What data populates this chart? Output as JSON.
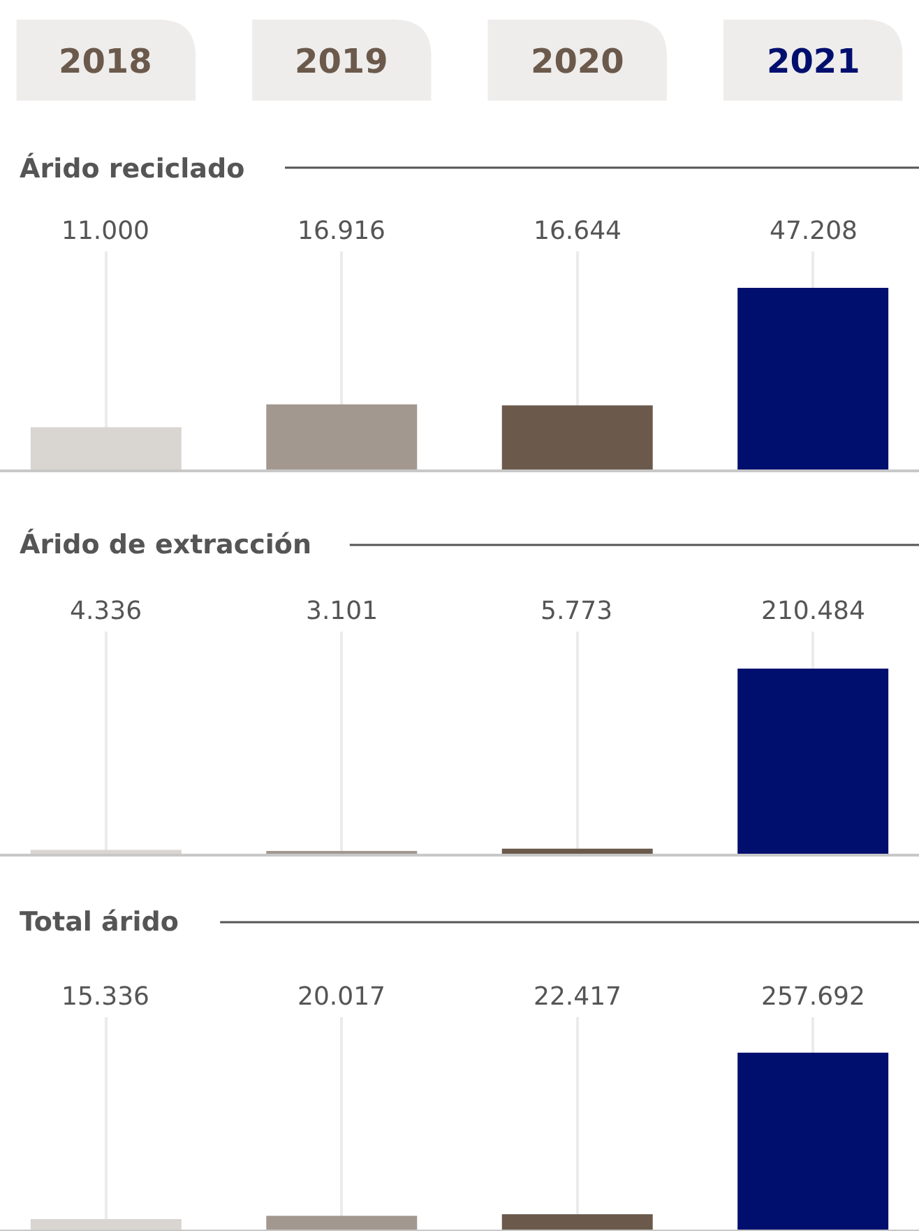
{
  "chart_data": [
    {
      "type": "bar",
      "title": "Árido reciclado",
      "categories": [
        "2018",
        "2019",
        "2020",
        "2021"
      ],
      "values": [
        11000,
        16916,
        16644,
        47208
      ],
      "value_labels": [
        "11.000",
        "16.916",
        "16.644",
        "47.208"
      ],
      "colors": [
        "#d9d5d1",
        "#a39890",
        "#6b5a4c",
        "#000f6e"
      ],
      "grid": "x",
      "tick_labels": "x"
    },
    {
      "type": "bar",
      "title": "Árido de extracción",
      "categories": [
        "2018",
        "2019",
        "2020",
        "2021"
      ],
      "values": [
        4336,
        3101,
        5773,
        210484
      ],
      "value_labels": [
        "4.336",
        "3.101",
        "5.773",
        "210.484"
      ],
      "colors": [
        "#d9d5d1",
        "#a39890",
        "#6b5a4c",
        "#000f6e"
      ],
      "grid": "x",
      "tick_labels": false
    },
    {
      "type": "bar",
      "title": "Total árido",
      "categories": [
        "2018",
        "2019",
        "2020",
        "2021"
      ],
      "values": [
        15336,
        20017,
        22417,
        257692
      ],
      "value_labels": [
        "15.336",
        "20.017",
        "22.417",
        "257.692"
      ],
      "colors": [
        "#d9d5d1",
        "#a39890",
        "#6b5a4c",
        "#000f6e"
      ],
      "grid": "x",
      "tick_labels": false
    }
  ]
}
